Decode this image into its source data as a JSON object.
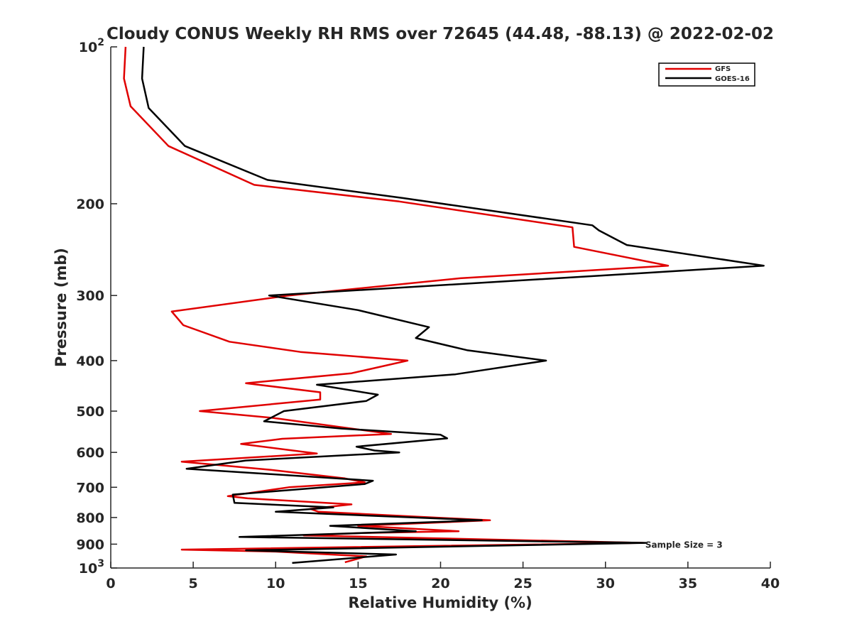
{
  "chart_data": {
    "type": "line",
    "title": "Cloudy CONUS Weekly RH RMS over 72645 (44.48, -88.13) @ 2022-02-02",
    "xlabel": "Relative Humidity (%)",
    "ylabel": "Pressure (mb)",
    "xlim": [
      0,
      40
    ],
    "ylim": [
      100,
      1000
    ],
    "y_scale": "log",
    "y_reversed": true,
    "x_ticks": [
      "0",
      "5",
      "10",
      "15",
      "20",
      "25",
      "30",
      "35",
      "40"
    ],
    "y_ticks": [
      {
        "value": 100,
        "base": "10",
        "exp": "2"
      },
      {
        "value": 200,
        "label": "200"
      },
      {
        "value": 300,
        "label": "300"
      },
      {
        "value": 400,
        "label": "400"
      },
      {
        "value": 500,
        "label": "500"
      },
      {
        "value": 600,
        "label": "600"
      },
      {
        "value": 700,
        "label": "700"
      },
      {
        "value": 800,
        "label": "800"
      },
      {
        "value": 900,
        "label": "900"
      },
      {
        "value": 1000,
        "base": "10",
        "exp": "3"
      }
    ],
    "grid": false,
    "legend_position": "top-right",
    "annotation": "Sample Size = 3",
    "annotation_at": [
      32.5,
      900
    ],
    "series": [
      {
        "name": "GFS",
        "color": "#e00000",
        "points": [
          [
            0.9,
            100
          ],
          [
            0.8,
            115
          ],
          [
            1.2,
            130
          ],
          [
            3.5,
            155
          ],
          [
            8.7,
            184
          ],
          [
            17.5,
            198
          ],
          [
            28.0,
            222
          ],
          [
            28.1,
            242
          ],
          [
            33.8,
            263
          ],
          [
            21.2,
            278
          ],
          [
            10.8,
            300
          ],
          [
            3.7,
            322
          ],
          [
            4.4,
            342
          ],
          [
            7.2,
            368
          ],
          [
            11.5,
            385
          ],
          [
            18.0,
            400
          ],
          [
            14.6,
            423
          ],
          [
            8.2,
            442
          ],
          [
            12.7,
            460
          ],
          [
            12.7,
            475
          ],
          [
            5.4,
            500
          ],
          [
            9.8,
            515
          ],
          [
            17.0,
            553
          ],
          [
            10.4,
            565
          ],
          [
            7.9,
            578
          ],
          [
            12.5,
            603
          ],
          [
            4.3,
            625
          ],
          [
            9.7,
            648
          ],
          [
            14.2,
            673
          ],
          [
            15.4,
            685
          ],
          [
            10.8,
            700
          ],
          [
            7.1,
            728
          ],
          [
            8.3,
            735
          ],
          [
            14.6,
            755
          ],
          [
            12.1,
            770
          ],
          [
            12.6,
            780
          ],
          [
            23.0,
            810
          ],
          [
            15.0,
            830
          ],
          [
            21.1,
            850
          ],
          [
            15.2,
            857
          ],
          [
            11.7,
            866
          ],
          [
            32.3,
            895
          ],
          [
            4.3,
            922
          ],
          [
            10.0,
            930
          ],
          [
            15.5,
            950
          ],
          [
            14.2,
            975
          ]
        ]
      },
      {
        "name": "GOES-16",
        "color": "#000000",
        "points": [
          [
            2.0,
            100
          ],
          [
            1.9,
            115
          ],
          [
            2.3,
            131
          ],
          [
            4.5,
            155
          ],
          [
            9.5,
            180
          ],
          [
            17.7,
            195
          ],
          [
            29.2,
            220
          ],
          [
            29.6,
            225
          ],
          [
            31.3,
            240
          ],
          [
            39.6,
            263
          ],
          [
            29.5,
            275
          ],
          [
            9.6,
            300
          ],
          [
            15.0,
            320
          ],
          [
            19.3,
            345
          ],
          [
            18.5,
            362
          ],
          [
            21.6,
            382
          ],
          [
            26.4,
            400
          ],
          [
            20.9,
            425
          ],
          [
            12.5,
            445
          ],
          [
            16.2,
            465
          ],
          [
            15.5,
            478
          ],
          [
            10.5,
            500
          ],
          [
            9.3,
            523
          ],
          [
            14.0,
            540
          ],
          [
            20.0,
            555
          ],
          [
            20.4,
            564
          ],
          [
            14.9,
            585
          ],
          [
            16.0,
            595
          ],
          [
            17.5,
            600
          ],
          [
            8.2,
            622
          ],
          [
            4.6,
            645
          ],
          [
            9.5,
            660
          ],
          [
            15.9,
            680
          ],
          [
            15.4,
            690
          ],
          [
            7.4,
            723
          ],
          [
            7.5,
            750
          ],
          [
            13.5,
            765
          ],
          [
            10.0,
            780
          ],
          [
            22.5,
            810
          ],
          [
            13.3,
            830
          ],
          [
            18.5,
            850
          ],
          [
            7.8,
            872
          ],
          [
            32.5,
            895
          ],
          [
            8.2,
            925
          ],
          [
            17.3,
            942
          ],
          [
            11.0,
            978
          ]
        ]
      }
    ]
  }
}
